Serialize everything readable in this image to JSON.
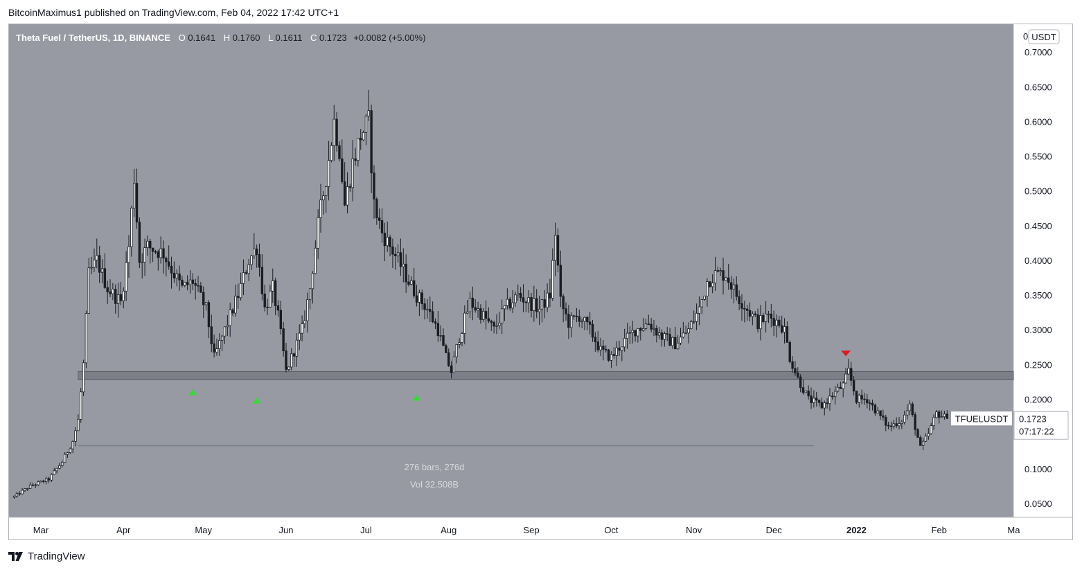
{
  "header": {
    "publisher_line": "BitcoinMaximus1 published on TradingView.com, Feb 04, 2022 17:42 UTC+1"
  },
  "legend": {
    "symbol": "Theta Fuel / TetherUS, 1D, BINANCE",
    "o_label": "O",
    "o_value": "0.1641",
    "h_label": "H",
    "h_value": "0.1760",
    "l_label": "L",
    "l_value": "0.1611",
    "c_label": "C",
    "c_value": "0.1723",
    "change": "+0.0082 (+5.00%)"
  },
  "price_axis": {
    "currency_badge": "USDT",
    "top_tick": "0",
    "ticks": [
      "0.7000",
      "0.6500",
      "0.6000",
      "0.5500",
      "0.5000",
      "0.4500",
      "0.4000",
      "0.3500",
      "0.3000",
      "0.2500",
      "0.2000",
      "0.1000",
      "0.0500"
    ],
    "ticker_label": "TFUELUSDT",
    "last_price": "0.1723",
    "countdown": "07:17:22"
  },
  "time_axis": {
    "ticks": [
      "Mar",
      "Apr",
      "May",
      "Jun",
      "Jul",
      "Aug",
      "Sep",
      "Oct",
      "Nov",
      "Dec",
      "2022",
      "Feb",
      "Ma"
    ]
  },
  "measure": {
    "bars_text": "276 bars, 276d",
    "vol_text": "Vol 32.508B"
  },
  "footer": {
    "brand": "TradingView"
  },
  "colors": {
    "background": "#979aa2",
    "candle": "#1b1d22",
    "support_zone": "#7c7f87",
    "up_marker": "#22e622",
    "down_marker": "#e01b1b",
    "axis_bg": "#ffffff"
  },
  "chart_data": {
    "type": "candlestick",
    "title": "Theta Fuel / TetherUS, 1D, BINANCE",
    "ylim": [
      0.03,
      0.74
    ],
    "y_ticks": [
      0.05,
      0.1,
      0.2,
      0.25,
      0.3,
      0.35,
      0.4,
      0.45,
      0.5,
      0.55,
      0.6,
      0.65,
      0.7
    ],
    "x_ticks": [
      {
        "label": "Mar",
        "date": "2021-03-01"
      },
      {
        "label": "Apr",
        "date": "2021-04-01"
      },
      {
        "label": "May",
        "date": "2021-05-01"
      },
      {
        "label": "Jun",
        "date": "2021-06-01"
      },
      {
        "label": "Jul",
        "date": "2021-07-01"
      },
      {
        "label": "Aug",
        "date": "2021-08-01"
      },
      {
        "label": "Sep",
        "date": "2021-09-01"
      },
      {
        "label": "Oct",
        "date": "2021-10-01"
      },
      {
        "label": "Nov",
        "date": "2021-11-01"
      },
      {
        "label": "Dec",
        "date": "2021-12-01"
      },
      {
        "label": "2022",
        "date": "2022-01-01"
      },
      {
        "label": "Feb",
        "date": "2022-02-01"
      },
      {
        "label": "Ma",
        "date": "2022-03-01"
      }
    ],
    "price_path": [
      [
        "2021-02-19",
        0.06
      ],
      [
        "2021-02-25",
        0.075
      ],
      [
        "2021-03-04",
        0.085
      ],
      [
        "2021-03-09",
        0.11
      ],
      [
        "2021-03-13",
        0.14
      ],
      [
        "2021-03-15",
        0.17
      ],
      [
        "2021-03-17",
        0.25
      ],
      [
        "2021-03-19",
        0.38
      ],
      [
        "2021-03-22",
        0.4
      ],
      [
        "2021-03-26",
        0.36
      ],
      [
        "2021-03-31",
        0.34
      ],
      [
        "2021-04-03",
        0.42
      ],
      [
        "2021-04-05",
        0.52
      ],
      [
        "2021-04-07",
        0.4
      ],
      [
        "2021-04-10",
        0.42
      ],
      [
        "2021-04-16",
        0.41
      ],
      [
        "2021-04-20",
        0.38
      ],
      [
        "2021-04-23",
        0.36
      ],
      [
        "2021-04-27",
        0.37
      ],
      [
        "2021-05-02",
        0.33
      ],
      [
        "2021-05-05",
        0.26
      ],
      [
        "2021-05-07",
        0.28
      ],
      [
        "2021-05-10",
        0.31
      ],
      [
        "2021-05-14",
        0.35
      ],
      [
        "2021-05-18",
        0.4
      ],
      [
        "2021-05-21",
        0.42
      ],
      [
        "2021-05-24",
        0.33
      ],
      [
        "2021-05-27",
        0.36
      ],
      [
        "2021-05-29",
        0.32
      ],
      [
        "2021-06-01",
        0.24
      ],
      [
        "2021-06-04",
        0.27
      ],
      [
        "2021-06-07",
        0.3
      ],
      [
        "2021-06-10",
        0.36
      ],
      [
        "2021-06-13",
        0.45
      ],
      [
        "2021-06-16",
        0.52
      ],
      [
        "2021-06-19",
        0.6
      ],
      [
        "2021-06-21",
        0.56
      ],
      [
        "2021-06-23",
        0.48
      ],
      [
        "2021-06-26",
        0.54
      ],
      [
        "2021-06-29",
        0.58
      ],
      [
        "2021-07-02",
        0.6
      ],
      [
        "2021-07-04",
        0.48
      ],
      [
        "2021-07-07",
        0.44
      ],
      [
        "2021-07-10",
        0.42
      ],
      [
        "2021-07-13",
        0.4
      ],
      [
        "2021-07-17",
        0.37
      ],
      [
        "2021-07-20",
        0.35
      ],
      [
        "2021-07-24",
        0.33
      ],
      [
        "2021-07-28",
        0.3
      ],
      [
        "2021-07-31",
        0.26
      ],
      [
        "2021-08-02",
        0.24
      ],
      [
        "2021-08-05",
        0.29
      ],
      [
        "2021-08-09",
        0.34
      ],
      [
        "2021-08-14",
        0.32
      ],
      [
        "2021-08-18",
        0.3
      ],
      [
        "2021-08-22",
        0.33
      ],
      [
        "2021-08-27",
        0.35
      ],
      [
        "2021-08-31",
        0.34
      ],
      [
        "2021-09-04",
        0.33
      ],
      [
        "2021-09-08",
        0.35
      ],
      [
        "2021-09-10",
        0.44
      ],
      [
        "2021-09-12",
        0.34
      ],
      [
        "2021-09-15",
        0.31
      ],
      [
        "2021-09-19",
        0.32
      ],
      [
        "2021-09-23",
        0.3
      ],
      [
        "2021-09-27",
        0.27
      ],
      [
        "2021-10-01",
        0.26
      ],
      [
        "2021-10-05",
        0.28
      ],
      [
        "2021-10-10",
        0.3
      ],
      [
        "2021-10-15",
        0.31
      ],
      [
        "2021-10-20",
        0.29
      ],
      [
        "2021-10-25",
        0.28
      ],
      [
        "2021-10-30",
        0.3
      ],
      [
        "2021-11-03",
        0.33
      ],
      [
        "2021-11-06",
        0.37
      ],
      [
        "2021-11-09",
        0.38
      ],
      [
        "2021-11-13",
        0.38
      ],
      [
        "2021-11-17",
        0.35
      ],
      [
        "2021-11-21",
        0.33
      ],
      [
        "2021-11-25",
        0.31
      ],
      [
        "2021-11-29",
        0.32
      ],
      [
        "2021-12-03",
        0.31
      ],
      [
        "2021-12-05",
        0.3
      ],
      [
        "2021-12-07",
        0.26
      ],
      [
        "2021-12-10",
        0.23
      ],
      [
        "2021-12-14",
        0.2
      ],
      [
        "2021-12-19",
        0.19
      ],
      [
        "2021-12-24",
        0.21
      ],
      [
        "2021-12-27",
        0.22
      ],
      [
        "2021-12-29",
        0.24
      ],
      [
        "2022-01-01",
        0.2
      ],
      [
        "2022-01-05",
        0.2
      ],
      [
        "2022-01-09",
        0.18
      ],
      [
        "2022-01-13",
        0.16
      ],
      [
        "2022-01-18",
        0.17
      ],
      [
        "2022-01-21",
        0.19
      ],
      [
        "2022-01-23",
        0.16
      ],
      [
        "2022-01-25",
        0.13
      ],
      [
        "2022-01-28",
        0.15
      ],
      [
        "2022-01-31",
        0.18
      ],
      [
        "2022-02-04",
        0.1723
      ]
    ],
    "support_zone": [
      0.228,
      0.24
    ],
    "support_zone_start": "2021-03-15",
    "markers": [
      {
        "type": "up",
        "date": "2021-04-27",
        "price": 0.21
      },
      {
        "type": "up",
        "date": "2021-05-21",
        "price": 0.198
      },
      {
        "type": "up",
        "date": "2021-07-20",
        "price": 0.202
      },
      {
        "type": "down",
        "date": "2021-12-28",
        "price": 0.265
      }
    ],
    "measure_range": {
      "start": "2021-03-15",
      "end": "2021-12-16",
      "price": 0.133
    },
    "last_price": 0.1723
  }
}
